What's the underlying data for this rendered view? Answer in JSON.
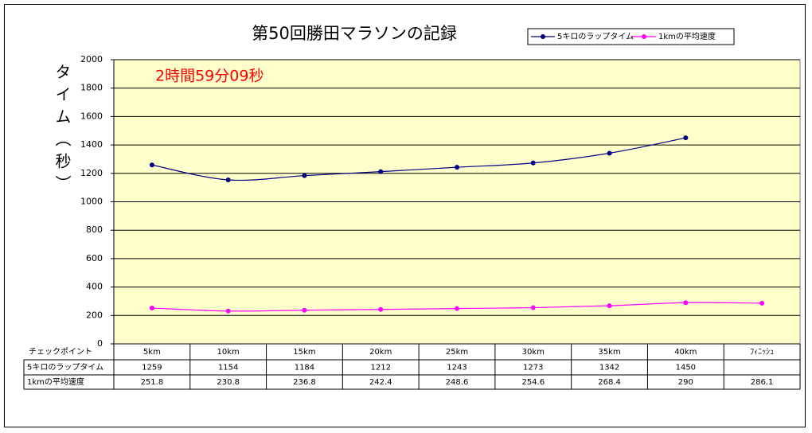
{
  "chart_data": {
    "type": "line",
    "title": "第50回勝田マラソンの記録",
    "y_label": "タイム（秒）",
    "annotation": "2時間59分09秒",
    "table_header": "チェックポイント",
    "categories": [
      "5km",
      "10km",
      "15km",
      "20km",
      "25km",
      "30km",
      "35km",
      "40km",
      "ﾌｨﾆｯｼｭ"
    ],
    "series": [
      {
        "name": "5キロのラップタイム",
        "color": "#000080",
        "values": [
          1259,
          1154,
          1184,
          1212,
          1243,
          1273,
          1342,
          1450,
          null
        ]
      },
      {
        "name": "1kmの平均速度",
        "color": "#ff00ff",
        "values": [
          251.8,
          230.8,
          236.8,
          242.4,
          248.6,
          254.6,
          268.4,
          290,
          286.1
        ]
      }
    ],
    "ylim": [
      0,
      2000
    ],
    "yticks": [
      0,
      200,
      400,
      600,
      800,
      1000,
      1200,
      1400,
      1600,
      1800,
      2000
    ],
    "grid": true,
    "legend": "top-right",
    "plot_background": "#ffffcc"
  }
}
